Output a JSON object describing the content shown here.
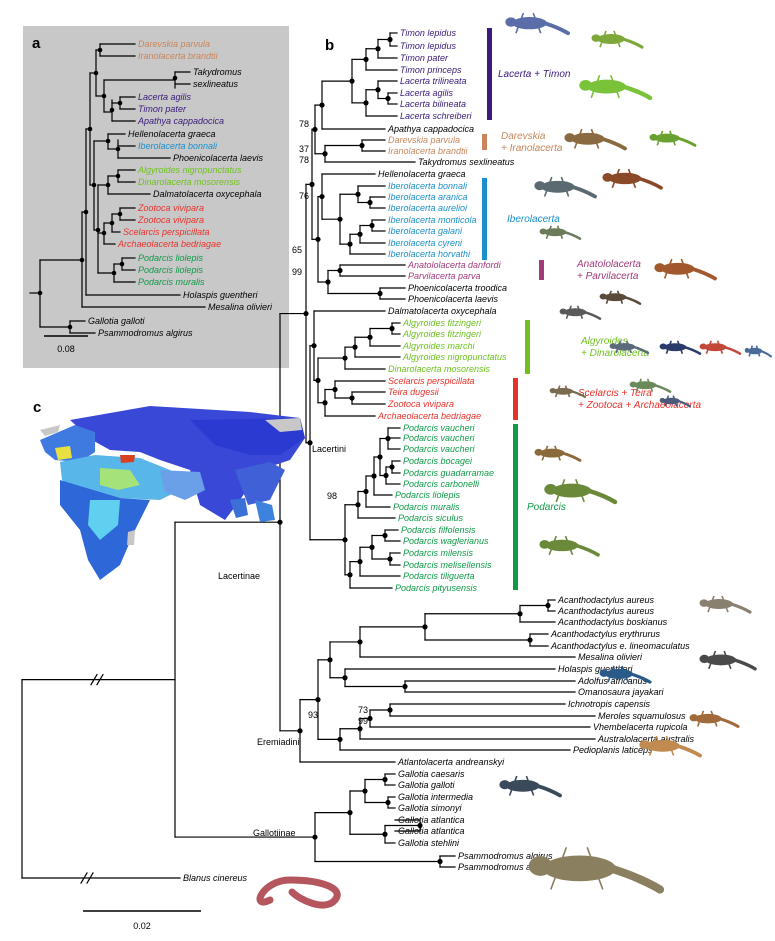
{
  "panel_labels": {
    "a": "a",
    "b": "b",
    "c": "c"
  },
  "scale_bars": {
    "a": "0.08",
    "b": "0.02"
  },
  "colors": {
    "lacerta_timon": "#3a1a7a",
    "darevskia_iranolacerta": "#c8865c",
    "iberolacerta": "#1a8fcc",
    "anatololacerta_parvilacerta": "#a23a7a",
    "algyroides_dinarolacerta": "#6ec21e",
    "scelarcis_teira_zootoca_archaeolacerta": "#e8312a",
    "podarcis": "#0f9a48",
    "black": "#000000"
  },
  "tree_a_tips": [
    {
      "name": "Darevskia parvula",
      "color": "darevskia_iranolacerta"
    },
    {
      "name": "Iranolacerta brandtii",
      "color": "darevskia_iranolacerta"
    },
    {
      "name": "Takydromus",
      "color": "black"
    },
    {
      "name": "sexlineatus",
      "color": "black"
    },
    {
      "name": "Lacerta agilis",
      "color": "lacerta_timon"
    },
    {
      "name": "Timon pater",
      "color": "lacerta_timon"
    },
    {
      "name": "Apathya cappadocica",
      "color": "lacerta_timon"
    },
    {
      "name": "Hellenolacerta graeca",
      "color": "black"
    },
    {
      "name": "Iberolacerta bonnali",
      "color": "iberolacerta"
    },
    {
      "name": "Phoenicolacerta laevis",
      "color": "black"
    },
    {
      "name": "Algyroides nigropunctatus",
      "color": "algyroides_dinarolacerta"
    },
    {
      "name": "Dinarolacerta mosorensis",
      "color": "algyroides_dinarolacerta"
    },
    {
      "name": "Dalmatolacerta oxycephala",
      "color": "black"
    },
    {
      "name": "Zootoca vivipara",
      "color": "scelarcis_teira_zootoca_archaeolacerta"
    },
    {
      "name": "Zootoca vivipara",
      "color": "scelarcis_teira_zootoca_archaeolacerta"
    },
    {
      "name": "Scelarcis perspicillata",
      "color": "scelarcis_teira_zootoca_archaeolacerta"
    },
    {
      "name": "Archaeolacerta bedriagae",
      "color": "scelarcis_teira_zootoca_archaeolacerta"
    },
    {
      "name": "Podarcis liolepis",
      "color": "podarcis"
    },
    {
      "name": "Podarcis liolepis",
      "color": "podarcis"
    },
    {
      "name": "Podarcis muralis",
      "color": "podarcis"
    },
    {
      "name": "Holaspis guentheri",
      "color": "black"
    },
    {
      "name": "Mesalina olivieri",
      "color": "black"
    },
    {
      "name": "Gallotia galloti",
      "color": "black"
    },
    {
      "name": "Psammodromus algirus",
      "color": "black"
    }
  ],
  "tree_b_tips": [
    {
      "name": "Timon lepidus",
      "color": "lacerta_timon"
    },
    {
      "name": "Timon lepidus",
      "color": "lacerta_timon"
    },
    {
      "name": "Timon pater",
      "color": "lacerta_timon"
    },
    {
      "name": "Timon princeps",
      "color": "lacerta_timon"
    },
    {
      "name": "Lacerta trilineata",
      "color": "lacerta_timon"
    },
    {
      "name": "Lacerta agilis",
      "color": "lacerta_timon"
    },
    {
      "name": "Lacerta bilineata",
      "color": "lacerta_timon"
    },
    {
      "name": "Lacerta schreiberi",
      "color": "lacerta_timon"
    },
    {
      "name": "Apathya cappadocica",
      "color": "black"
    },
    {
      "name": "Darevskia parvula",
      "color": "darevskia_iranolacerta"
    },
    {
      "name": "Iranolacerta brandtii",
      "color": "darevskia_iranolacerta"
    },
    {
      "name": "Takydromus sexlineatus",
      "color": "black"
    },
    {
      "name": "Hellenolacerta graeca",
      "color": "black"
    },
    {
      "name": "Iberolacerta bonnali",
      "color": "iberolacerta"
    },
    {
      "name": "Iberolacerta aranica",
      "color": "iberolacerta"
    },
    {
      "name": "Iberolacerta aurelioi",
      "color": "iberolacerta"
    },
    {
      "name": "Iberolacerta monticola",
      "color": "iberolacerta"
    },
    {
      "name": "Iberolacerta galani",
      "color": "iberolacerta"
    },
    {
      "name": "Iberolacerta cyreni",
      "color": "iberolacerta"
    },
    {
      "name": "Iberolacerta horvathi",
      "color": "iberolacerta"
    },
    {
      "name": "Anatololacerta danfordi",
      "color": "anatololacerta_parvilacerta"
    },
    {
      "name": "Parvilacerta parva",
      "color": "anatololacerta_parvilacerta"
    },
    {
      "name": "Phoenicolacerta troodica",
      "color": "black"
    },
    {
      "name": "Phoenicolacerta laevis",
      "color": "black"
    },
    {
      "name": "Dalmatolacerta oxycephala",
      "color": "black"
    },
    {
      "name": "Algyroides fitzingeri",
      "color": "algyroides_dinarolacerta"
    },
    {
      "name": "Algyroides fitzingeri",
      "color": "algyroides_dinarolacerta"
    },
    {
      "name": "Algyroides marchi",
      "color": "algyroides_dinarolacerta"
    },
    {
      "name": "Algyroides nigropunctatus",
      "color": "algyroides_dinarolacerta"
    },
    {
      "name": "Dinarolacerta mosorensis",
      "color": "algyroides_dinarolacerta"
    },
    {
      "name": "Scelarcis perspicillata",
      "color": "scelarcis_teira_zootoca_archaeolacerta"
    },
    {
      "name": "Teira dugesii",
      "color": "scelarcis_teira_zootoca_archaeolacerta"
    },
    {
      "name": "Zootoca vivipara",
      "color": "scelarcis_teira_zootoca_archaeolacerta"
    },
    {
      "name": "Archaeolacerta bedriagae",
      "color": "scelarcis_teira_zootoca_archaeolacerta"
    },
    {
      "name": "Podarcis vaucheri",
      "color": "podarcis"
    },
    {
      "name": "Podarcis vaucheri",
      "color": "podarcis"
    },
    {
      "name": "Podarcis vaucheri",
      "color": "podarcis"
    },
    {
      "name": "Podarcis bocagei",
      "color": "podarcis"
    },
    {
      "name": "Podarcis guadarramae",
      "color": "podarcis"
    },
    {
      "name": "Podarcis carbonelli",
      "color": "podarcis"
    },
    {
      "name": "Podarcis liolepis",
      "color": "podarcis"
    },
    {
      "name": "Podarcis muralis",
      "color": "podarcis"
    },
    {
      "name": "Podarcis siculus",
      "color": "podarcis"
    },
    {
      "name": "Podarcis filfolensis",
      "color": "podarcis"
    },
    {
      "name": "Podarcis waglerianus",
      "color": "podarcis"
    },
    {
      "name": "Podarcis milensis",
      "color": "podarcis"
    },
    {
      "name": "Podarcis melisellensis",
      "color": "podarcis"
    },
    {
      "name": "Podarcis tiliguerta",
      "color": "podarcis"
    },
    {
      "name": "Podarcis pityusensis",
      "color": "podarcis"
    },
    {
      "name": "Acanthodactylus aureus",
      "color": "black"
    },
    {
      "name": "Acanthodactylus aureus",
      "color": "black"
    },
    {
      "name": "Acanthodactylus boskianus",
      "color": "black"
    },
    {
      "name": "Acanthodactylus erythrurus",
      "color": "black"
    },
    {
      "name": "Acanthodactylus e. lineomaculatus",
      "color": "black"
    },
    {
      "name": "Mesalina olivieri",
      "color": "black"
    },
    {
      "name": "Holaspis guentheri",
      "color": "black"
    },
    {
      "name": "Adolfus africanus",
      "color": "black"
    },
    {
      "name": "Omanosaura jayakari",
      "color": "black"
    },
    {
      "name": "Ichnotropis capensis",
      "color": "black"
    },
    {
      "name": "Meroles squamulosus",
      "color": "black"
    },
    {
      "name": "Vhembelacerta rupicola",
      "color": "black"
    },
    {
      "name": "Australolacerta australis",
      "color": "black"
    },
    {
      "name": "Pedioplanis laticeps",
      "color": "black"
    },
    {
      "name": "Atlantolacerta andreanskyi",
      "color": "black"
    },
    {
      "name": "Gallotia caesaris",
      "color": "black"
    },
    {
      "name": "Gallotia galloti",
      "color": "black"
    },
    {
      "name": "Gallotia intermedia",
      "color": "black"
    },
    {
      "name": "Gallotia simonyi",
      "color": "black"
    },
    {
      "name": "Gallotia atlantica",
      "color": "black"
    },
    {
      "name": "Gallotia atlantica",
      "color": "black"
    },
    {
      "name": "Gallotia stehlini",
      "color": "black"
    },
    {
      "name": "Psammodromus algirus",
      "color": "black"
    },
    {
      "name": "Psammodromus algirus",
      "color": "black"
    },
    {
      "name": "Blanus cinereus",
      "color": "black"
    }
  ],
  "clades": [
    {
      "lines": [
        "Lacerta + Timon"
      ],
      "color": "lacerta_timon"
    },
    {
      "lines": [
        "Darevskia",
        "+ Iranolacerta"
      ],
      "color": "darevskia_iranolacerta"
    },
    {
      "lines": [
        "Iberolacerta"
      ],
      "color": "iberolacerta"
    },
    {
      "lines": [
        "Anatololacerta",
        "+ Parvilacerta"
      ],
      "color": "anatololacerta_parvilacerta"
    },
    {
      "lines": [
        "Algyroides",
        "+ Dinarolacerta"
      ],
      "color": "algyroides_dinarolacerta"
    },
    {
      "lines": [
        "Scelarcis + Teira",
        "+ Zootoca + Archaeolacerta"
      ],
      "color": "scelarcis_teira_zootoca_archaeolacerta"
    },
    {
      "lines": [
        "Podarcis"
      ],
      "color": "podarcis"
    }
  ],
  "node_labels": [
    "Lacertini",
    "Lacertinae",
    "Eremiadini",
    "Gallotiinae"
  ],
  "support_values": [
    "78",
    "37",
    "78",
    "76",
    "65",
    "99",
    "98",
    "93",
    "73",
    "99"
  ]
}
